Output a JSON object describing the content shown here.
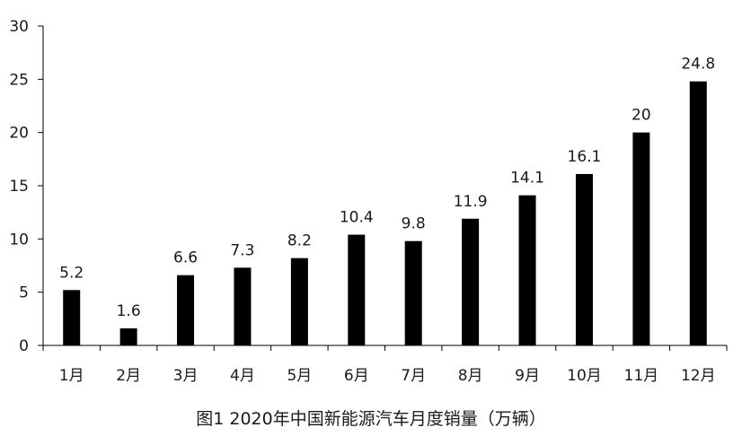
{
  "chart_data": {
    "type": "bar",
    "title": "图1  2020年中国新能源汽车月度销量（万辆）",
    "xlabel": "",
    "ylabel": "",
    "categories": [
      "1月",
      "2月",
      "3月",
      "4月",
      "5月",
      "6月",
      "7月",
      "8月",
      "9月",
      "10月",
      "11月",
      "12月"
    ],
    "values": [
      5.2,
      1.6,
      6.6,
      7.3,
      8.2,
      10.4,
      9.8,
      11.9,
      14.1,
      16.1,
      20,
      24.8
    ],
    "value_labels": [
      "5.2",
      "1.6",
      "6.6",
      "7.3",
      "8.2",
      "10.4",
      "9.8",
      "11.9",
      "14.1",
      "16.1",
      "20",
      "24.8"
    ],
    "ylim": [
      0,
      30
    ],
    "yticks": [
      0,
      5,
      10,
      15,
      20,
      25,
      30
    ],
    "grid": false,
    "legend": "none",
    "bar_color": "#000000"
  }
}
